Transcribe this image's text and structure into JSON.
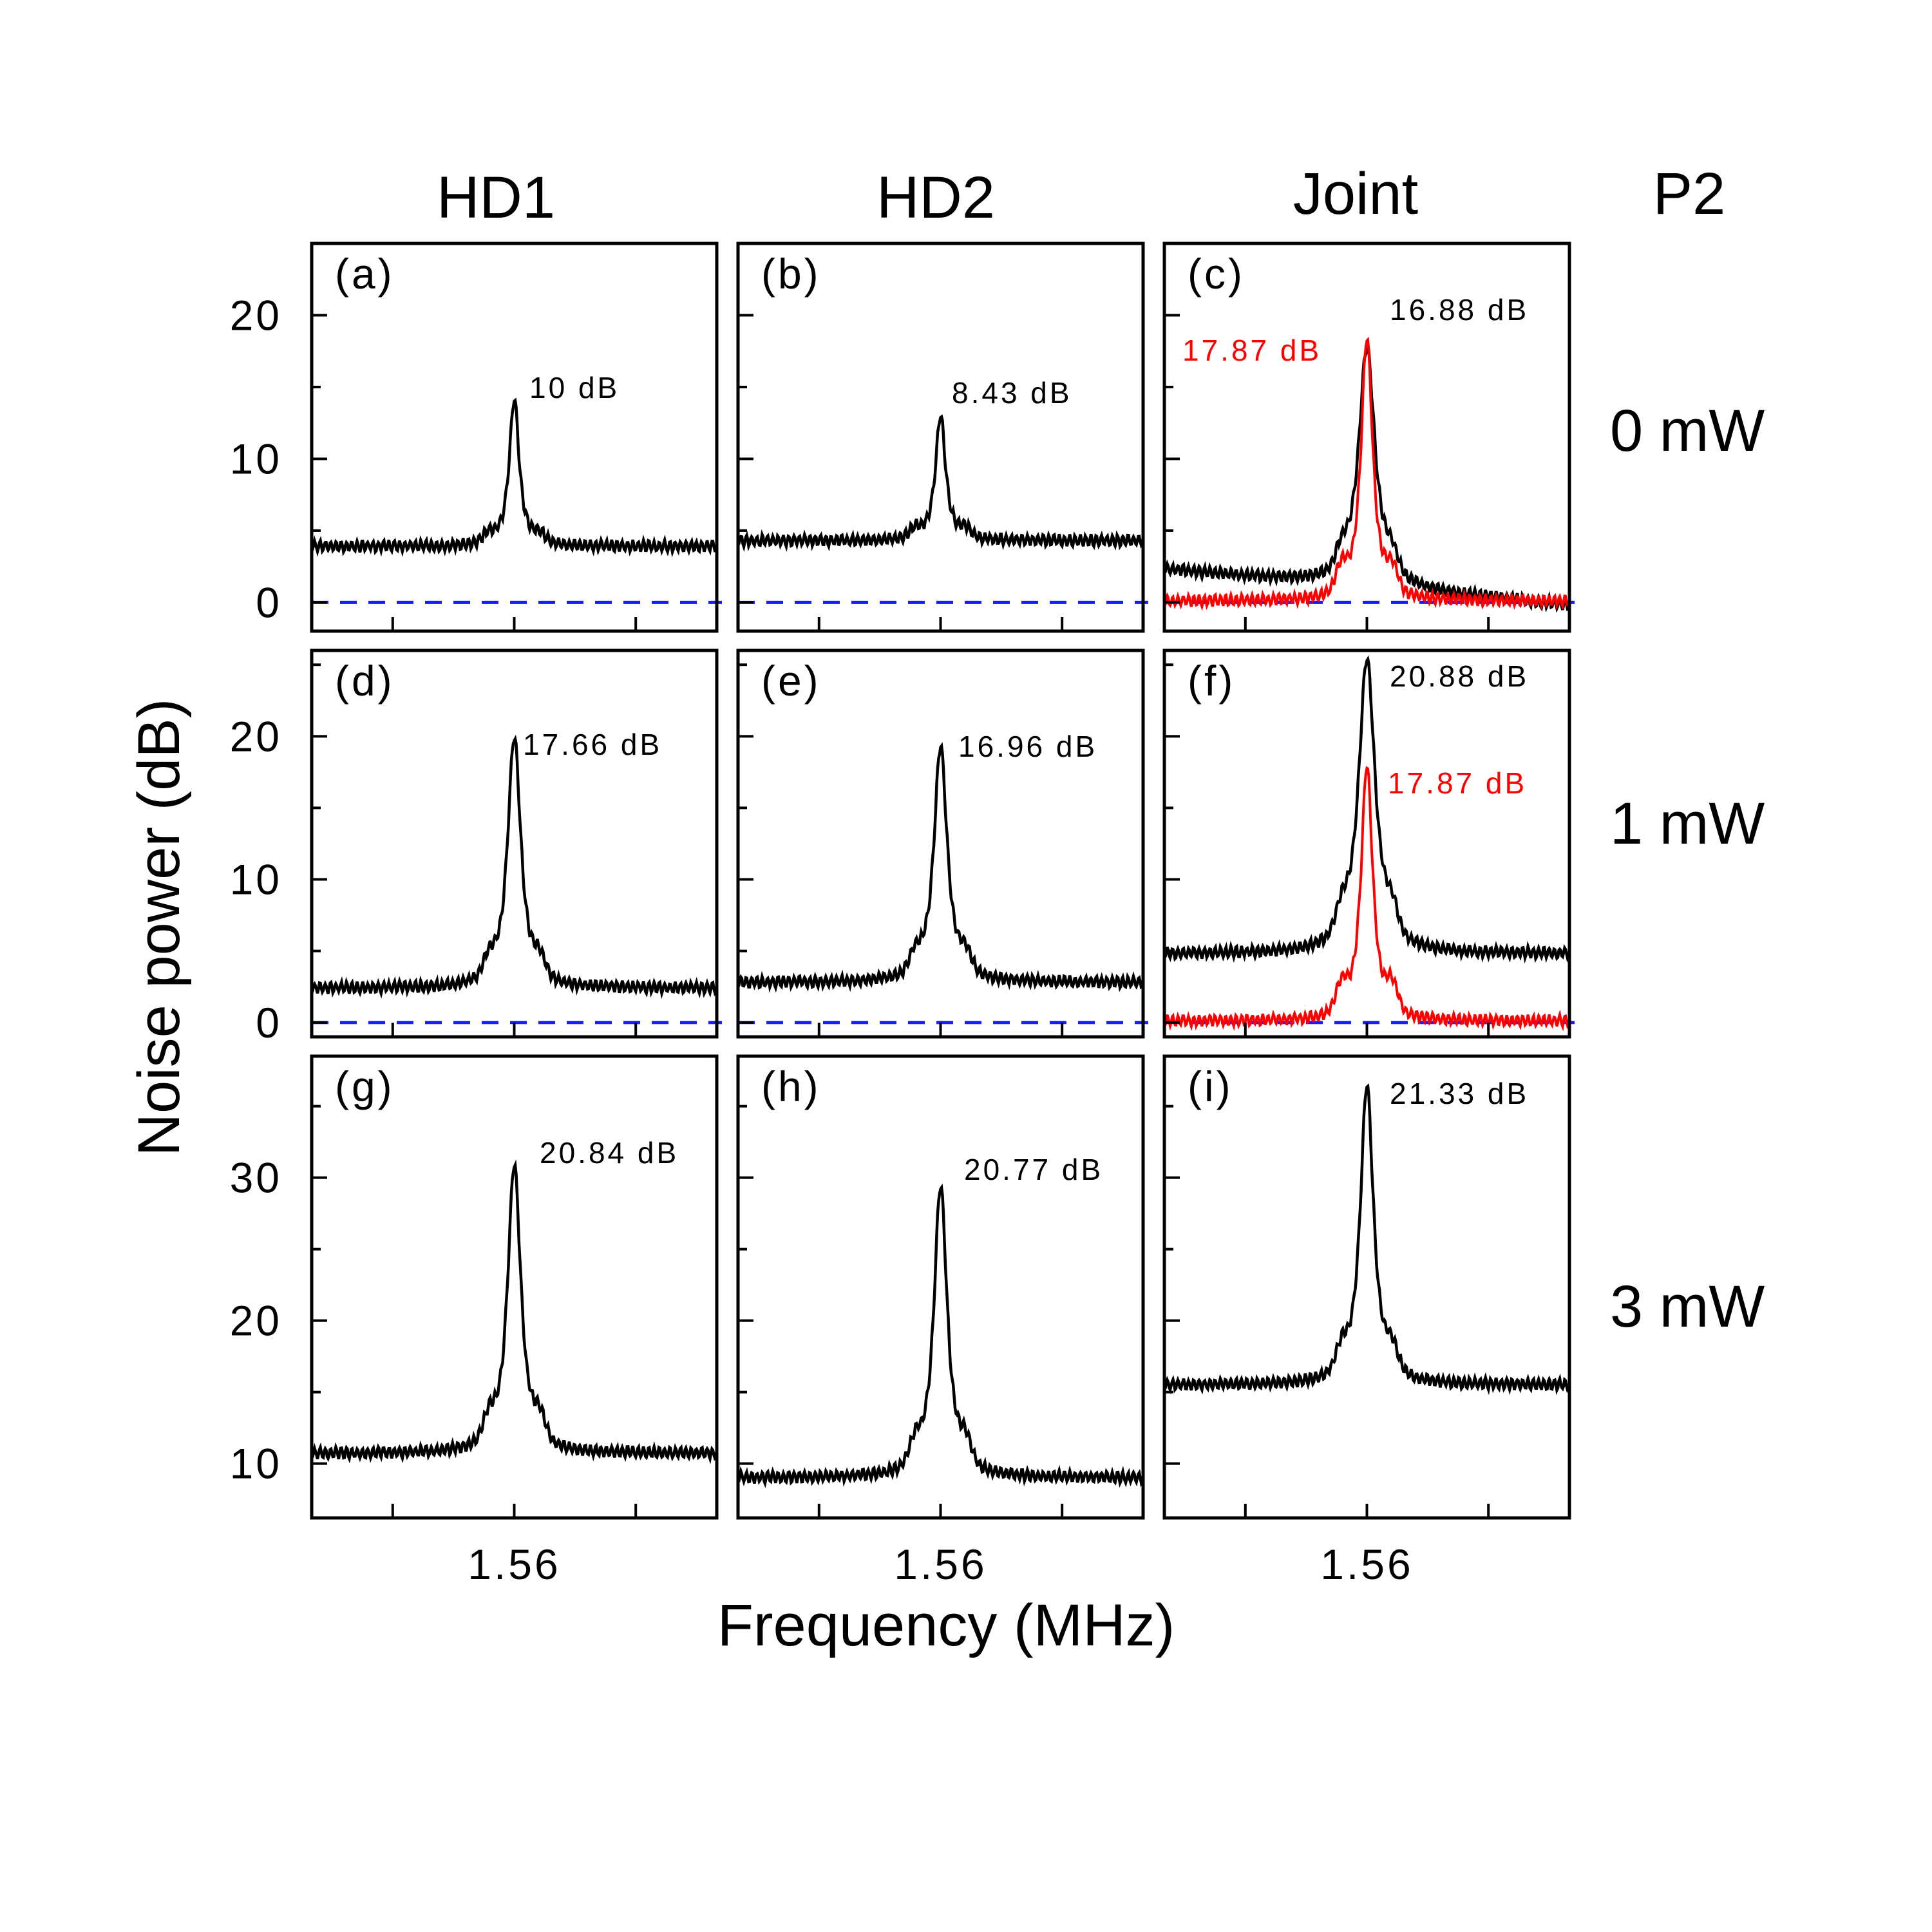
{
  "column_titles": [
    "HD1",
    "HD2",
    "Joint"
  ],
  "row_header_title": "P2",
  "row_titles": [
    "0 mW",
    "1 mW",
    "3 mW"
  ],
  "colors": {
    "black": "#000000",
    "red": "#ff0000",
    "baseline": "#1a1aff"
  },
  "chart_data": {
    "type": "line",
    "layout": "3x3 grid of panels",
    "xlabel": "Frequency (MHz)",
    "ylabel": "Noise power (dB)",
    "x_tick_label": "1.56",
    "xlim": [
      1.46,
      1.66
    ],
    "x_ticks": [
      1.5,
      1.56,
      1.62
    ],
    "rows": [
      {
        "condition": "0 mW",
        "ylim": [
          -2,
          25
        ],
        "y_ticks": [
          0,
          10,
          20
        ],
        "zero_baseline": true
      },
      {
        "condition": "1 mW",
        "ylim": [
          -1,
          26
        ],
        "y_ticks": [
          0,
          10,
          20
        ],
        "zero_baseline": true
      },
      {
        "condition": "3 mW",
        "ylim": [
          6.2,
          38.5
        ],
        "y_ticks": [
          10,
          20,
          30
        ],
        "zero_baseline": false
      }
    ],
    "panels": [
      {
        "label": "(a)",
        "row": 0,
        "col": 0,
        "series": [
          {
            "color": "#000000",
            "peak_x": 1.56,
            "peak_y": 14.2,
            "floor": 3.9,
            "floor_slope": 0,
            "width": 0.003,
            "shoulder": 0.6,
            "annotation": "10 dB"
          }
        ]
      },
      {
        "label": "(b)",
        "row": 0,
        "col": 1,
        "series": [
          {
            "color": "#000000",
            "peak_x": 1.56,
            "peak_y": 13.1,
            "floor": 4.3,
            "floor_slope": 0,
            "width": 0.003,
            "shoulder": 0.6,
            "annotation": "8.43 dB"
          }
        ]
      },
      {
        "label": "(c)",
        "row": 0,
        "col": 2,
        "series": [
          {
            "color": "#000000",
            "peak_x": 1.56,
            "peak_y": 19.0,
            "floor": 2.3,
            "floor_slope": -2.5,
            "width": 0.005,
            "shoulder": 1.2,
            "annotation": "16.88 dB"
          },
          {
            "color": "#ff0000",
            "peak_x": 1.56,
            "peak_y": 18.5,
            "floor": 0.1,
            "floor_slope": 0,
            "width": 0.0035,
            "shoulder": 1.6,
            "annotation": "17.87 dB"
          }
        ]
      },
      {
        "label": "(d)",
        "row": 1,
        "col": 0,
        "series": [
          {
            "color": "#000000",
            "peak_x": 1.56,
            "peak_y": 20.0,
            "floor": 2.4,
            "floor_slope": 0,
            "width": 0.004,
            "shoulder": 1.2,
            "annotation": "17.66 dB"
          }
        ]
      },
      {
        "label": "(e)",
        "row": 1,
        "col": 1,
        "series": [
          {
            "color": "#000000",
            "peak_x": 1.56,
            "peak_y": 19.4,
            "floor": 2.8,
            "floor_slope": 0,
            "width": 0.004,
            "shoulder": 1.2,
            "annotation": "16.96 dB"
          }
        ]
      },
      {
        "label": "(f)",
        "row": 1,
        "col": 2,
        "series": [
          {
            "color": "#000000",
            "peak_x": 1.56,
            "peak_y": 25.5,
            "floor": 4.8,
            "floor_slope": 0,
            "width": 0.005,
            "shoulder": 1.5,
            "annotation": "20.88 dB"
          },
          {
            "color": "#ff0000",
            "peak_x": 1.56,
            "peak_y": 18.0,
            "floor": 0.1,
            "floor_slope": 0,
            "width": 0.0035,
            "shoulder": 1.8,
            "annotation": "17.87 dB"
          }
        ]
      },
      {
        "label": "(g)",
        "row": 2,
        "col": 0,
        "series": [
          {
            "color": "#000000",
            "peak_x": 1.56,
            "peak_y": 31.0,
            "floor": 10.7,
            "floor_slope": 0,
            "width": 0.004,
            "shoulder": 1.5,
            "annotation": "20.84 dB"
          }
        ]
      },
      {
        "label": "(h)",
        "row": 2,
        "col": 1,
        "series": [
          {
            "color": "#000000",
            "peak_x": 1.56,
            "peak_y": 29.5,
            "floor": 9.0,
            "floor_slope": 0,
            "width": 0.004,
            "shoulder": 1.5,
            "annotation": "20.77 dB"
          }
        ]
      },
      {
        "label": "(i)",
        "row": 2,
        "col": 2,
        "series": [
          {
            "color": "#000000",
            "peak_x": 1.56,
            "peak_y": 36.5,
            "floor": 15.5,
            "floor_slope": 0,
            "width": 0.004,
            "shoulder": 1.5,
            "annotation": "21.33 dB"
          }
        ]
      }
    ]
  }
}
